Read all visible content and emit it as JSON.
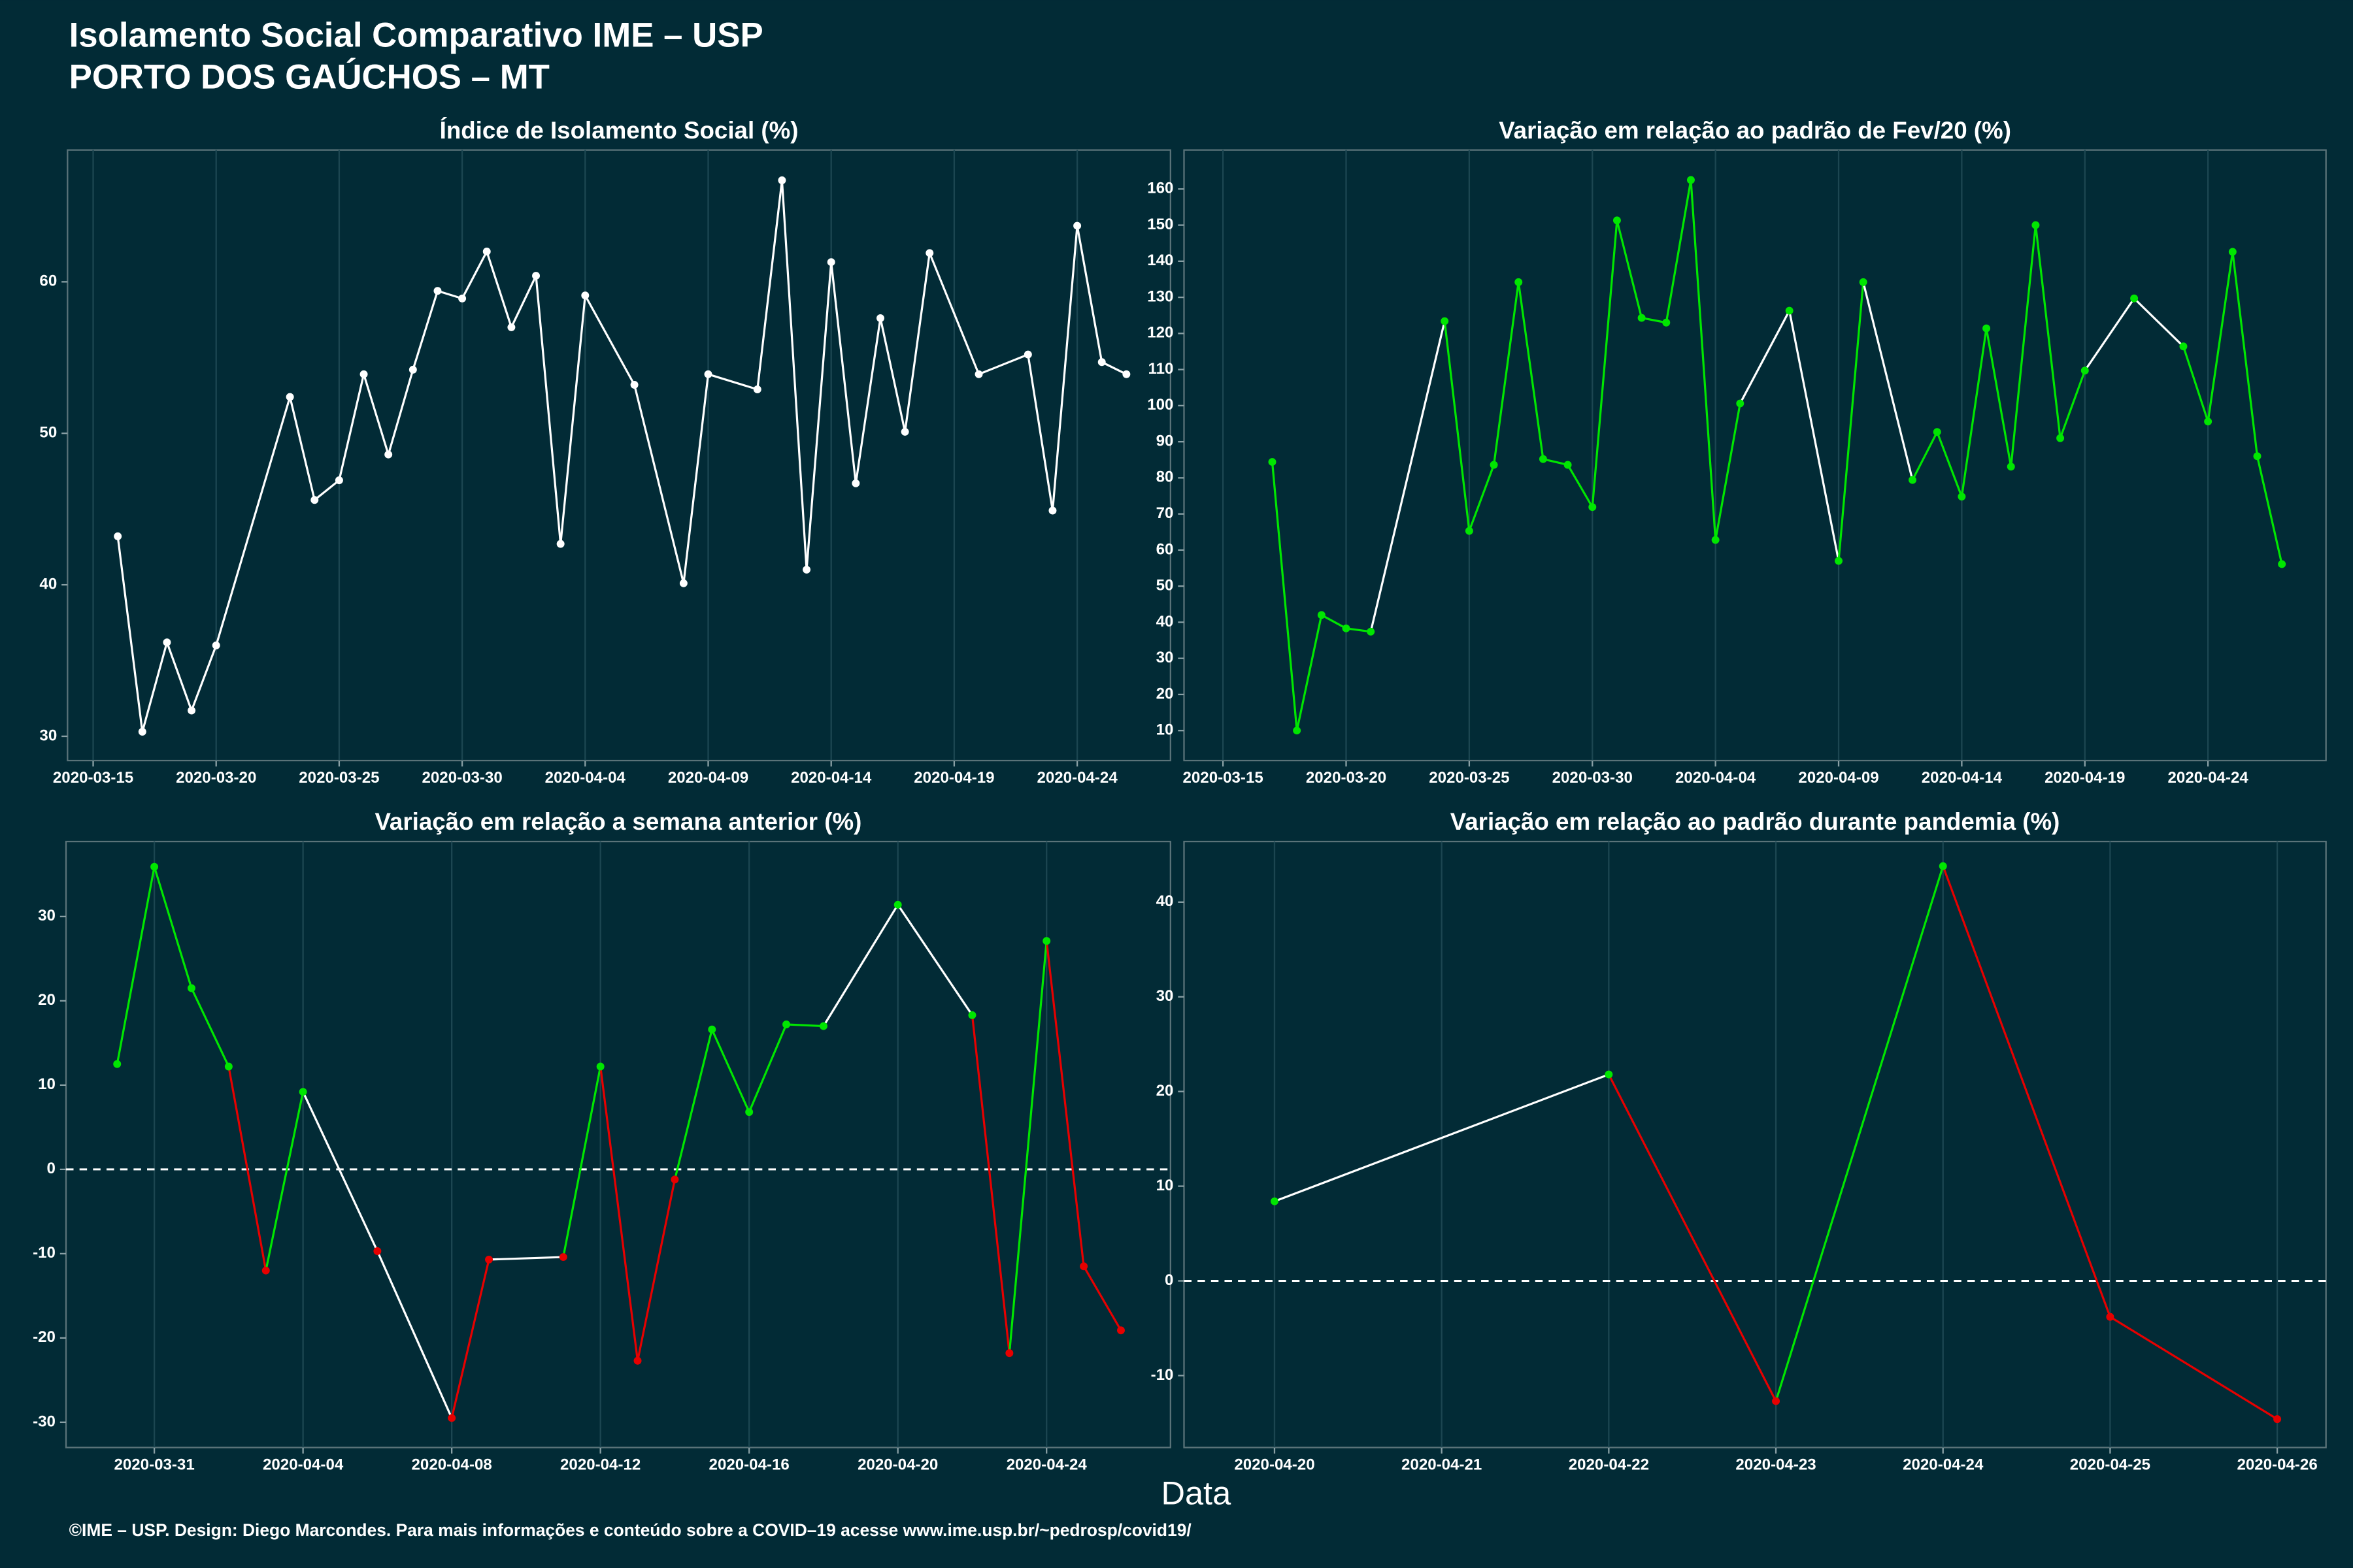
{
  "title": "Isolamento Social Comparativo IME – USP",
  "subtitle": "PORTO DOS GAÚCHOS – MT",
  "xlabel": "Data",
  "footer": "©IME – USP. Design: Diego Marcondes. Para mais informações e conteúdo sobre a COVID–19 acesse www.ime.usp.br/~pedrosp/covid19/",
  "chart_data": [
    {
      "type": "line",
      "title": "Índice de Isolamento Social (%)",
      "color": "#ffffff",
      "grid": "x",
      "x": [
        "2020-03-16",
        "2020-03-17",
        "2020-03-18",
        "2020-03-19",
        "2020-03-20",
        "2020-03-23",
        "2020-03-24",
        "2020-03-25",
        "2020-03-26",
        "2020-03-27",
        "2020-03-28",
        "2020-03-29",
        "2020-03-30",
        "2020-03-31",
        "2020-04-01",
        "2020-04-02",
        "2020-04-03",
        "2020-04-04",
        "2020-04-06",
        "2020-04-08",
        "2020-04-09",
        "2020-04-11",
        "2020-04-12",
        "2020-04-13",
        "2020-04-14",
        "2020-04-15",
        "2020-04-16",
        "2020-04-17",
        "2020-04-18",
        "2020-04-20",
        "2020-04-22",
        "2020-04-23",
        "2020-04-24",
        "2020-04-25",
        "2020-04-26"
      ],
      "values": [
        43.2,
        30.3,
        36.2,
        31.7,
        36.0,
        52.4,
        45.6,
        46.9,
        53.9,
        48.6,
        54.2,
        59.4,
        58.9,
        62.0,
        57.0,
        60.4,
        42.7,
        59.1,
        53.2,
        40.1,
        53.9,
        52.9,
        66.7,
        41.0,
        61.3,
        46.7,
        57.6,
        50.1,
        61.9,
        53.9,
        55.2,
        44.9,
        63.7,
        54.7,
        53.9
      ],
      "xlim": [
        "2020-03-13T23:00",
        "2020-04-27T19:00"
      ],
      "xticks": [
        "2020-03-15",
        "2020-03-20",
        "2020-03-25",
        "2020-03-30",
        "2020-04-04",
        "2020-04-09",
        "2020-04-14",
        "2020-04-19",
        "2020-04-24"
      ],
      "ylim": [
        28.4,
        68.7
      ],
      "yticks": [
        30,
        40,
        50,
        60
      ]
    },
    {
      "type": "line",
      "title": "Variação em relação ao padrão de Fev/20 (%)",
      "positive_color": "#00e600",
      "negative_color": "#e60000",
      "gap_color": "#ffffff",
      "grid": "x",
      "x": [
        "2020-03-17",
        "2020-03-18",
        "2020-03-19",
        "2020-03-20",
        "2020-03-21",
        "2020-03-24",
        "2020-03-25",
        "2020-03-26",
        "2020-03-27",
        "2020-03-28",
        "2020-03-29",
        "2020-03-30",
        "2020-03-31",
        "2020-04-01",
        "2020-04-02",
        "2020-04-03",
        "2020-04-04",
        "2020-04-05",
        "2020-04-07",
        "2020-04-09",
        "2020-04-10",
        "2020-04-12",
        "2020-04-13",
        "2020-04-14",
        "2020-04-15",
        "2020-04-16",
        "2020-04-17",
        "2020-04-18",
        "2020-04-19",
        "2020-04-21",
        "2020-04-23",
        "2020-04-24",
        "2020-04-25",
        "2020-04-26",
        "2020-04-27"
      ],
      "values": [
        84.4,
        10,
        42,
        38.3,
        37.4,
        123.4,
        65.3,
        83.6,
        134.2,
        85.2,
        83.6,
        71.9,
        151.3,
        124.3,
        123.0,
        162.5,
        62.8,
        100.6,
        126.3,
        57.0,
        134.2,
        79.4,
        92.7,
        74.8,
        121.4,
        83.1,
        150.0,
        91.0,
        109.7,
        129.7,
        116.4,
        95.6,
        142.6,
        86.0,
        56.1
      ],
      "xlim": [
        "2020-03-13T10:00",
        "2020-04-28T19:00"
      ],
      "xticks": [
        "2020-03-15",
        "2020-03-20",
        "2020-03-25",
        "2020-03-30",
        "2020-04-04",
        "2020-04-09",
        "2020-04-14",
        "2020-04-19",
        "2020-04-24"
      ],
      "ylim": [
        1.7,
        170.8
      ],
      "yticks": [
        10,
        20,
        30,
        40,
        50,
        60,
        70,
        80,
        90,
        100,
        110,
        120,
        130,
        140,
        150,
        160
      ]
    },
    {
      "type": "line",
      "title": "Variação em relação a semana anterior (%)",
      "positive_color": "#00e600",
      "negative_color": "#e60000",
      "gap_color": "#ffffff",
      "grid": "x",
      "hline": 0,
      "x": [
        "2020-03-30",
        "2020-03-31",
        "2020-04-01",
        "2020-04-02",
        "2020-04-03",
        "2020-04-04",
        "2020-04-06",
        "2020-04-08",
        "2020-04-09",
        "2020-04-11",
        "2020-04-12",
        "2020-04-13",
        "2020-04-14",
        "2020-04-15",
        "2020-04-16",
        "2020-04-17",
        "2020-04-18",
        "2020-04-20",
        "2020-04-22",
        "2020-04-23",
        "2020-04-24",
        "2020-04-25",
        "2020-04-26"
      ],
      "values": [
        12.5,
        35.9,
        21.5,
        12.2,
        -12.0,
        9.2,
        -9.7,
        -29.5,
        -10.7,
        -10.4,
        12.2,
        -22.7,
        -1.2,
        16.6,
        6.8,
        17.2,
        17.0,
        31.4,
        18.3,
        -21.8,
        27.1,
        -11.5,
        -19.1
      ],
      "xlim": [
        "2020-03-28T15:00",
        "2020-04-27T08:00"
      ],
      "xticks": [
        "2020-03-31",
        "2020-04-04",
        "2020-04-08",
        "2020-04-12",
        "2020-04-16",
        "2020-04-20",
        "2020-04-24"
      ],
      "ylim": [
        -33.0,
        38.9
      ],
      "yticks": [
        -30,
        -20,
        -10,
        0,
        10,
        20,
        30
      ]
    },
    {
      "type": "line",
      "title": "Variação em relação ao padrão durante pandemia (%)",
      "positive_color": "#00e600",
      "negative_color": "#e60000",
      "gap_color": "#ffffff",
      "grid": "x",
      "hline": 0,
      "x": [
        "2020-04-20",
        "2020-04-22",
        "2020-04-23",
        "2020-04-24",
        "2020-04-25",
        "2020-04-26"
      ],
      "values": [
        8.4,
        21.8,
        -12.7,
        43.8,
        -3.8,
        -14.6
      ],
      "xlim": [
        "2020-04-19T11:00",
        "2020-04-26T07:00"
      ],
      "xticks": [
        "2020-04-20",
        "2020-04-21",
        "2020-04-22",
        "2020-04-23",
        "2020-04-24",
        "2020-04-25",
        "2020-04-26"
      ],
      "ylim": [
        -17.6,
        46.4
      ],
      "yticks": [
        -10,
        0,
        10,
        20,
        30,
        40
      ]
    }
  ]
}
